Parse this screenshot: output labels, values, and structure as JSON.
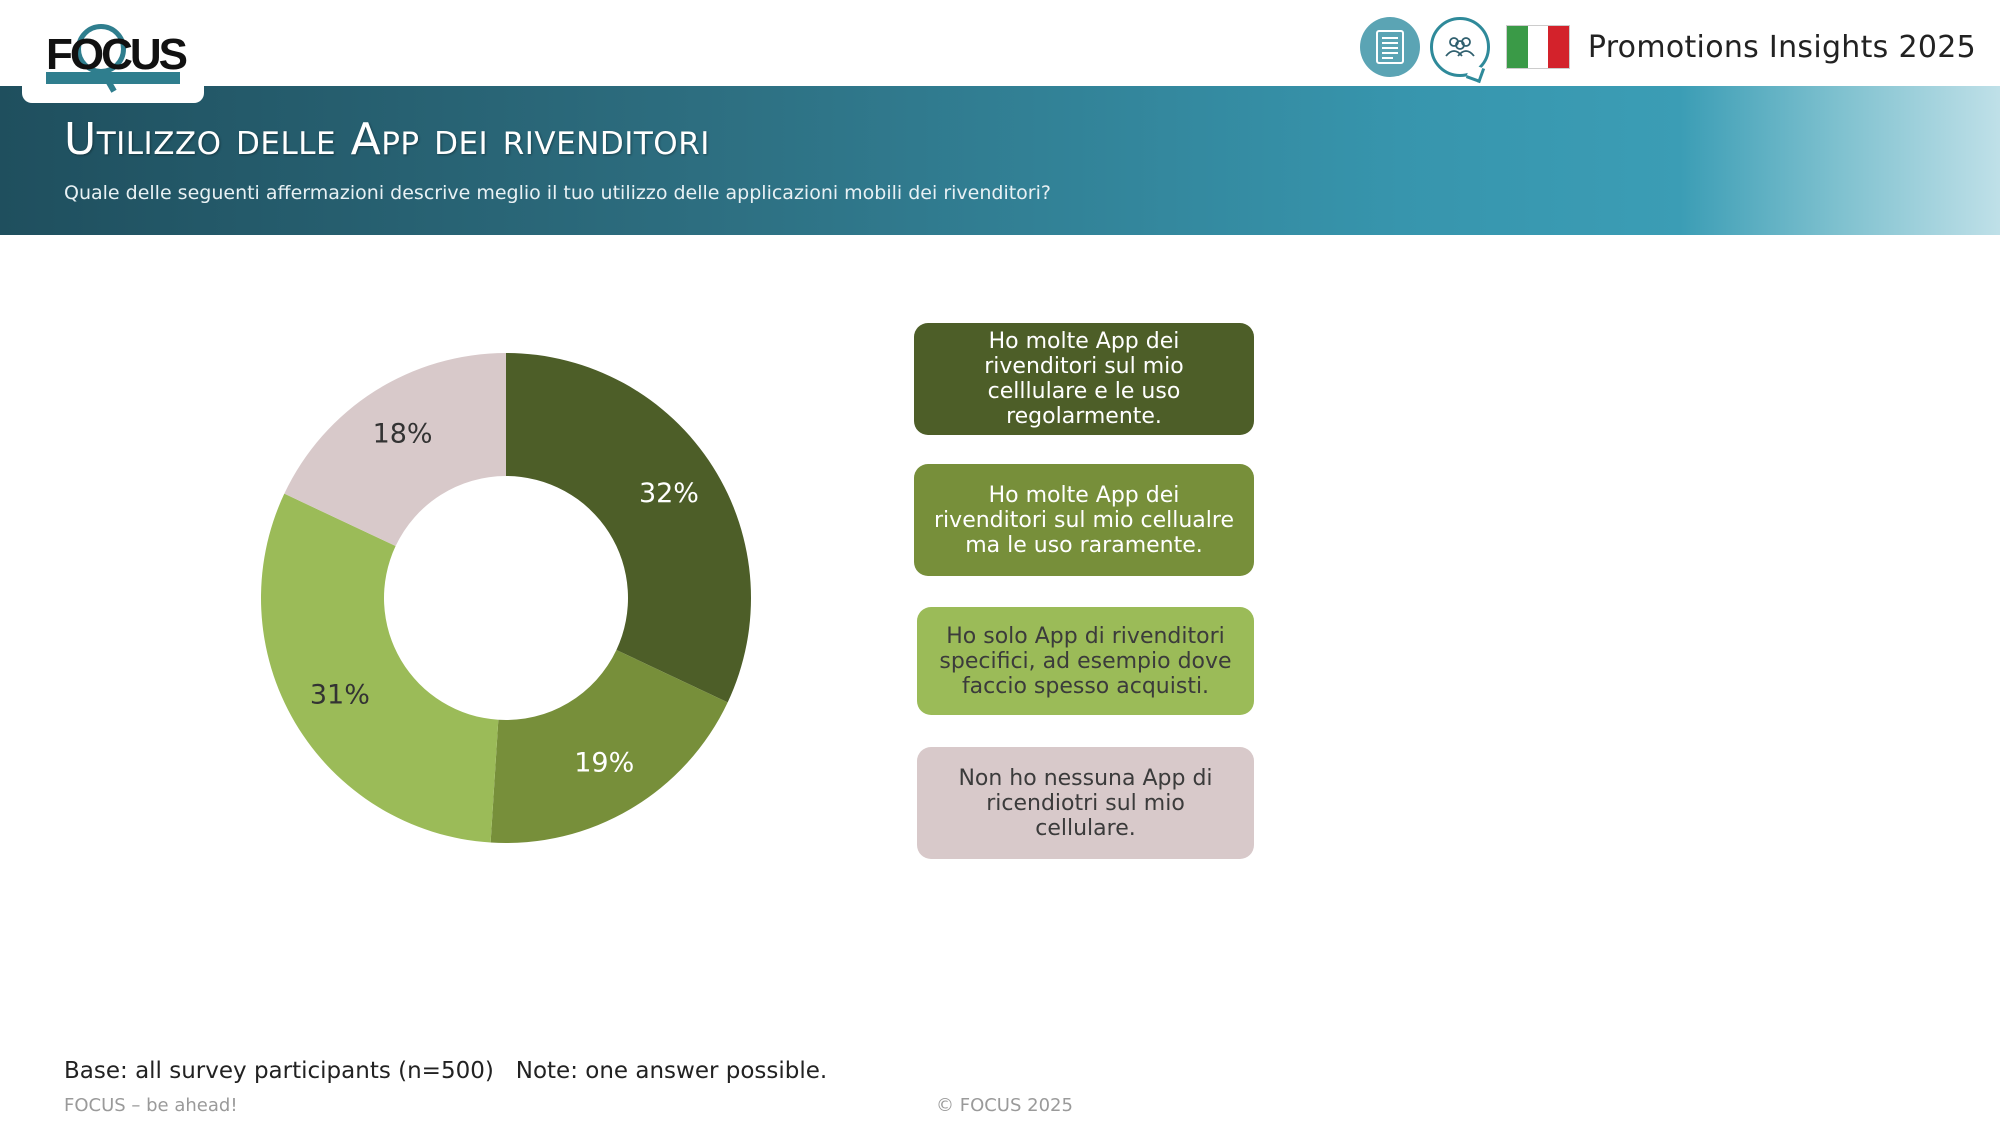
{
  "brand": {
    "logo_text": "FOCUS"
  },
  "header": {
    "report_title": "Promotions Insights 2025",
    "icons": [
      "report-icon",
      "people-icon",
      "italy-flag-icon"
    ]
  },
  "banner": {
    "title": "Utilizzo delle App dei rivenditori",
    "subtitle": "Quale delle seguenti affermazioni descrive meglio il tuo utilizzo delle applicazioni mobili dei rivenditori?"
  },
  "chart_data": {
    "type": "pie",
    "donut": true,
    "title": "Utilizzo delle App dei rivenditori",
    "categories": [
      "Ho molte App dei rivenditori sul mio celllulare e le uso regolarmente.",
      "Ho molte App dei rivenditori sul mio cellualre ma le uso raramente.",
      "Ho solo App di rivenditori specifici, ad esempio dove faccio spesso acquisti.",
      "Non ho nessuna App di ricendiotri sul mio cellulare."
    ],
    "values": [
      32,
      19,
      31,
      18
    ],
    "labels": [
      "32%",
      "19%",
      "31%",
      "18%"
    ],
    "colors": [
      "#4d5e28",
      "#778f3a",
      "#9bbb58",
      "#d8c9ca"
    ],
    "label_colors": [
      "#ffffff",
      "#ffffff",
      "#333333",
      "#333333"
    ],
    "legend_position": "right"
  },
  "footer": {
    "base_note": "Base: all survey participants (n=500)   Note: one answer possible.",
    "tagline": "FOCUS – be ahead!",
    "copyright": "© FOCUS 2025"
  }
}
